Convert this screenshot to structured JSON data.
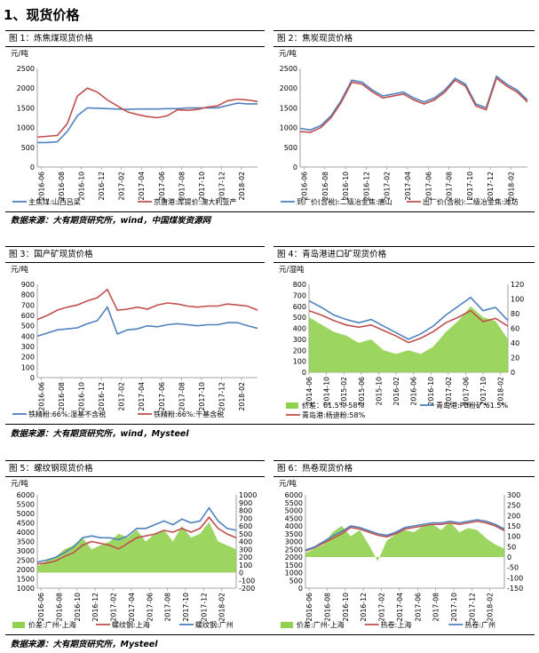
{
  "section_title": "1、现货价格",
  "sources": {
    "row1": "数据来源：大有期货研究所，wind，中国煤炭资源网",
    "row2": "数据来源：大有期货研究所，wind，Mysteel",
    "row3": "数据来源：大有期货研究所，Mysteel"
  },
  "panels": [
    {
      "title": "图 1：炼焦煤现货价格",
      "unit_left": "元/吨",
      "unit_right": ""
    },
    {
      "title": "图 2：焦炭现货价格",
      "unit_left": "元/吨",
      "unit_right": ""
    },
    {
      "title": "图 3：国产矿现货价格",
      "unit_left": "元/吨",
      "unit_right": ""
    },
    {
      "title": "图 4：青岛港进口矿现货价格",
      "unit_left": "元/湿吨",
      "unit_right": ""
    },
    {
      "title": "图 5：螺纹钢现货价格",
      "unit_left": "元/吨",
      "unit_right": ""
    },
    {
      "title": "图 6：热卷现货价格",
      "unit_left": "元/吨",
      "unit_right": ""
    }
  ],
  "chart_data": [
    {
      "type": "line",
      "title": "图 1：炼焦煤现货价格",
      "ylabel": "元/吨",
      "ylim": [
        0,
        2500
      ],
      "yticks": [
        0,
        500,
        1000,
        1500,
        2000,
        2500
      ],
      "xlim": [
        0,
        22
      ],
      "xtick_labels": [
        "2016-06",
        "2016-08",
        "2016-10",
        "2016-12",
        "2017-02",
        "2017-04",
        "2017-06",
        "2017-08",
        "2017-10",
        "2017-12",
        "2018-02"
      ],
      "series": [
        {
          "name": "主焦煤:山西吕梁",
          "color": "#4f81bd",
          "x": [
            0,
            1,
            2,
            3,
            4,
            5,
            6,
            7,
            8,
            9,
            10,
            11,
            12,
            13,
            14,
            15,
            16,
            17,
            18,
            19,
            20,
            21,
            22
          ],
          "y": [
            620,
            620,
            640,
            900,
            1300,
            1500,
            1490,
            1480,
            1470,
            1460,
            1470,
            1470,
            1470,
            1480,
            1480,
            1500,
            1500,
            1500,
            1500,
            1560,
            1620,
            1600,
            1600
          ]
        },
        {
          "name": "京唐港:库提价:澳大利亚产",
          "color": "#c0504d",
          "x": [
            0,
            1,
            2,
            3,
            4,
            5,
            6,
            7,
            8,
            9,
            10,
            11,
            12,
            13,
            14,
            15,
            16,
            17,
            18,
            19,
            20,
            21,
            22
          ],
          "y": [
            760,
            780,
            800,
            1100,
            1800,
            2000,
            1900,
            1700,
            1550,
            1400,
            1330,
            1280,
            1250,
            1300,
            1450,
            1440,
            1460,
            1520,
            1550,
            1680,
            1720,
            1700,
            1660
          ]
        }
      ]
    },
    {
      "type": "line",
      "title": "图 2：焦炭现货价格",
      "ylabel": "元/吨",
      "ylim": [
        0,
        2500
      ],
      "yticks": [
        0,
        500,
        1000,
        1500,
        2000,
        2500
      ],
      "xlim": [
        0,
        22
      ],
      "xtick_labels": [
        "2016-06",
        "2016-08",
        "2016-10",
        "2016-12",
        "2017-02",
        "2017-04",
        "2017-06",
        "2017-08",
        "2017-10",
        "2017-12",
        "2018-02"
      ],
      "series": [
        {
          "name": "到厂价(含税):二级冶金焦:唐山",
          "color": "#4f81bd",
          "x": [
            0,
            1,
            2,
            3,
            4,
            5,
            6,
            7,
            8,
            9,
            10,
            11,
            12,
            13,
            14,
            15,
            16,
            17,
            18,
            19,
            20,
            21,
            22
          ],
          "y": [
            980,
            940,
            1050,
            1300,
            1700,
            2200,
            2150,
            1950,
            1800,
            1850,
            1900,
            1750,
            1650,
            1750,
            1950,
            2250,
            2100,
            1600,
            1500,
            2300,
            2100,
            1950,
            1700
          ]
        },
        {
          "name": "出厂价(含税):二级冶金焦:潍坊",
          "color": "#c0504d",
          "x": [
            0,
            1,
            2,
            3,
            4,
            5,
            6,
            7,
            8,
            9,
            10,
            11,
            12,
            13,
            14,
            15,
            16,
            17,
            18,
            19,
            20,
            21,
            22
          ],
          "y": [
            900,
            880,
            1000,
            1250,
            1650,
            2150,
            2100,
            1900,
            1750,
            1800,
            1850,
            1700,
            1600,
            1700,
            1900,
            2200,
            2050,
            1550,
            1450,
            2250,
            2050,
            1900,
            1650
          ]
        }
      ]
    },
    {
      "type": "line",
      "title": "图 3：国产矿现货价格",
      "ylabel": "元/吨",
      "ylim": [
        0,
        900
      ],
      "yticks": [
        0,
        100,
        200,
        300,
        400,
        500,
        600,
        700,
        800,
        900
      ],
      "xlim": [
        0,
        22
      ],
      "xtick_labels": [
        "2016-06",
        "2016-08",
        "2016-10",
        "2016-12",
        "2017-02",
        "2017-04",
        "2017-06",
        "2017-08",
        "2017-10",
        "2017-12",
        "2018-02"
      ],
      "series": [
        {
          "name": "铁精粉:66%:湿基不含税",
          "color": "#4f81bd",
          "x": [
            0,
            1,
            2,
            3,
            4,
            5,
            6,
            7,
            8,
            9,
            10,
            11,
            12,
            13,
            14,
            15,
            16,
            17,
            18,
            19,
            20,
            21,
            22
          ],
          "y": [
            400,
            430,
            460,
            470,
            480,
            520,
            550,
            680,
            420,
            460,
            470,
            500,
            490,
            510,
            520,
            510,
            500,
            510,
            510,
            530,
            530,
            500,
            475
          ]
        },
        {
          "name": "铁精粉:66%:干基含税",
          "color": "#c0504d",
          "x": [
            0,
            1,
            2,
            3,
            4,
            5,
            6,
            7,
            8,
            9,
            10,
            11,
            12,
            13,
            14,
            15,
            16,
            17,
            18,
            19,
            20,
            21,
            22
          ],
          "y": [
            560,
            600,
            650,
            680,
            700,
            740,
            770,
            850,
            650,
            660,
            680,
            660,
            700,
            720,
            710,
            690,
            680,
            690,
            690,
            710,
            700,
            690,
            650
          ]
        }
      ]
    },
    {
      "type": "line",
      "title": "图 4：青岛港进口矿现货价格",
      "ylabel": "元/湿吨",
      "ylim": [
        0,
        800
      ],
      "yticks": [
        0,
        100,
        200,
        300,
        400,
        500,
        600,
        700,
        800
      ],
      "y2lim": [
        0,
        120
      ],
      "y2ticks": [
        0,
        20,
        40,
        60,
        80,
        100,
        120
      ],
      "xlim": [
        0,
        16
      ],
      "xtick_labels": [
        "2014-06",
        "2014-10",
        "2015-02",
        "2015-06",
        "2015-10",
        "2016-02",
        "2016-06",
        "2016-10",
        "2017-02",
        "2017-06",
        "2017-10",
        "2018-02"
      ],
      "xtick_positions": [
        0,
        1.4,
        2.8,
        4.2,
        5.6,
        7,
        8.4,
        9.8,
        11.2,
        12.6,
        14,
        15.4
      ],
      "series": [
        {
          "name": "价差：61.5%-58%",
          "color": "#92d050",
          "type": "area",
          "axis": "right",
          "x": [
            0,
            1,
            2,
            3,
            4,
            5,
            6,
            7,
            8,
            9,
            10,
            11,
            12,
            13,
            14,
            15,
            16
          ],
          "y": [
            75,
            65,
            55,
            50,
            40,
            45,
            30,
            25,
            30,
            25,
            35,
            55,
            70,
            90,
            75,
            70,
            45
          ]
        },
        {
          "name": "青岛港:PB粉矿:61.5%",
          "color": "#4f81bd",
          "x": [
            0,
            1,
            2,
            3,
            4,
            5,
            6,
            7,
            8,
            9,
            10,
            11,
            12,
            13,
            14,
            15,
            16
          ],
          "y": [
            650,
            590,
            520,
            480,
            450,
            480,
            420,
            360,
            300,
            350,
            420,
            520,
            600,
            680,
            560,
            590,
            470
          ]
        },
        {
          "name": "青岛港:杨迪粉:58%",
          "color": "#c0504d",
          "x": [
            0,
            1,
            2,
            3,
            4,
            5,
            6,
            7,
            8,
            9,
            10,
            11,
            12,
            13,
            14,
            15,
            16
          ],
          "y": [
            560,
            520,
            470,
            430,
            410,
            430,
            380,
            330,
            270,
            310,
            370,
            450,
            500,
            560,
            460,
            490,
            420
          ]
        }
      ]
    },
    {
      "type": "line",
      "title": "图 5：螺纹钢现货价格",
      "ylabel": "元/吨",
      "ylim": [
        1000,
        6000
      ],
      "yticks": [
        1000,
        1500,
        2000,
        2500,
        3000,
        3500,
        4000,
        4500,
        5000,
        5500,
        6000
      ],
      "y2lim": [
        -200,
        1000
      ],
      "y2ticks": [
        -200,
        -100,
        0,
        100,
        200,
        300,
        400,
        500,
        600,
        700,
        800,
        900,
        1000
      ],
      "xlim": [
        0,
        22
      ],
      "xtick_labels": [
        "2016-06",
        "2016-08",
        "2016-10",
        "2016-12",
        "2017-02",
        "2017-04",
        "2017-06",
        "2017-08",
        "2017-10",
        "2017-12",
        "2018-02"
      ],
      "series": [
        {
          "name": "价差:广州-上海",
          "color": "#92d050",
          "type": "area",
          "axis": "right",
          "x": [
            0,
            1,
            2,
            3,
            4,
            5,
            6,
            7,
            8,
            9,
            10,
            11,
            12,
            13,
            14,
            15,
            16,
            17,
            18,
            19,
            20,
            21,
            22
          ],
          "y": [
            80,
            150,
            200,
            300,
            350,
            450,
            300,
            350,
            400,
            500,
            450,
            550,
            400,
            500,
            550,
            400,
            600,
            450,
            500,
            650,
            400,
            350,
            300
          ]
        },
        {
          "name": "螺纹钢:上海",
          "color": "#c0504d",
          "x": [
            0,
            1,
            2,
            3,
            4,
            5,
            6,
            7,
            8,
            9,
            10,
            11,
            12,
            13,
            14,
            15,
            16,
            17,
            18,
            19,
            20,
            21,
            22
          ],
          "y": [
            2300,
            2350,
            2450,
            2700,
            2900,
            3300,
            3500,
            3400,
            3300,
            3100,
            3400,
            3700,
            3800,
            3900,
            4100,
            4000,
            4200,
            4000,
            4200,
            4800,
            4200,
            3900,
            3700
          ]
        },
        {
          "name": "螺纹钢:广州",
          "color": "#4f81bd",
          "x": [
            0,
            1,
            2,
            3,
            4,
            5,
            6,
            7,
            8,
            9,
            10,
            11,
            12,
            13,
            14,
            15,
            16,
            17,
            18,
            19,
            20,
            21,
            22
          ],
          "y": [
            2400,
            2500,
            2650,
            2900,
            3200,
            3700,
            3800,
            3700,
            3700,
            3600,
            3800,
            4200,
            4200,
            4400,
            4600,
            4400,
            4700,
            4500,
            4600,
            5300,
            4600,
            4200,
            4100
          ]
        }
      ]
    },
    {
      "type": "line",
      "title": "图 6：热卷现货价格",
      "ylabel": "元/吨",
      "ylim": [
        0,
        6000
      ],
      "yticks": [
        0,
        500,
        1000,
        1500,
        2000,
        2500,
        3000,
        3500,
        4000,
        4500,
        5000,
        5500,
        6000
      ],
      "y2lim": [
        -150,
        300
      ],
      "y2ticks": [
        -150,
        -100,
        -50,
        0,
        50,
        100,
        150,
        200,
        250,
        300
      ],
      "xlim": [
        0,
        22
      ],
      "xtick_labels": [
        "2016-06",
        "2016-08",
        "2016-10",
        "2016-12",
        "2017-02",
        "2017-04",
        "2017-06",
        "2017-08",
        "2017-10",
        "2017-12",
        "2018-02"
      ],
      "series": [
        {
          "name": "价差:广州-上海",
          "color": "#92d050",
          "type": "area",
          "axis": "right",
          "x": [
            0,
            1,
            2,
            3,
            4,
            5,
            6,
            7,
            8,
            9,
            10,
            11,
            12,
            13,
            14,
            15,
            16,
            17,
            18,
            19,
            20,
            21,
            22
          ],
          "y": [
            20,
            40,
            60,
            120,
            150,
            100,
            130,
            60,
            -20,
            80,
            110,
            130,
            120,
            150,
            160,
            130,
            170,
            120,
            140,
            130,
            90,
            60,
            40
          ]
        },
        {
          "name": "热卷:上海",
          "color": "#c0504d",
          "x": [
            0,
            1,
            2,
            3,
            4,
            5,
            6,
            7,
            8,
            9,
            10,
            11,
            12,
            13,
            14,
            15,
            16,
            17,
            18,
            19,
            20,
            21,
            22
          ],
          "y": [
            2400,
            2600,
            2900,
            3200,
            3500,
            3900,
            3800,
            3600,
            3400,
            3300,
            3500,
            3800,
            3900,
            4000,
            4100,
            4100,
            4200,
            4100,
            4200,
            4300,
            4200,
            4000,
            3700
          ]
        },
        {
          "name": "热卷:广州",
          "color": "#4f81bd",
          "x": [
            0,
            1,
            2,
            3,
            4,
            5,
            6,
            7,
            8,
            9,
            10,
            11,
            12,
            13,
            14,
            15,
            16,
            17,
            18,
            19,
            20,
            21,
            22
          ],
          "y": [
            2450,
            2650,
            3000,
            3350,
            3650,
            4000,
            3900,
            3700,
            3500,
            3400,
            3600,
            3900,
            4000,
            4100,
            4200,
            4200,
            4300,
            4200,
            4300,
            4400,
            4300,
            4100,
            3800
          ]
        }
      ]
    }
  ]
}
